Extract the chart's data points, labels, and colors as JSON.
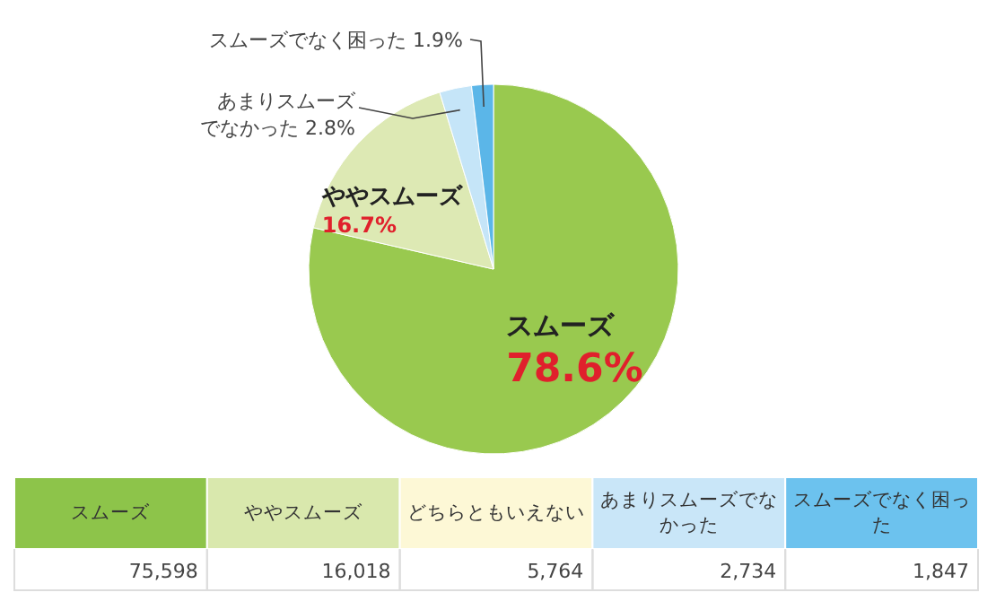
{
  "chart_data": [
    {
      "type": "pie",
      "categories": [
        "スムーズ",
        "ややスムーズ",
        "あまりスムーズでなかった",
        "スムーズでなく困った"
      ],
      "values": [
        78.6,
        16.7,
        2.8,
        1.9
      ],
      "colors": [
        "#99c94f",
        "#dde9b4",
        "#c5e5f8",
        "#5bb6e8"
      ],
      "value_labels": [
        "78.6%",
        "16.7%",
        "2.8%",
        "1.9%"
      ]
    },
    {
      "type": "other",
      "categories": [
        "スムーズ",
        "ややスムーズ",
        "どちらともいえない",
        "あまりスムーズでなかった",
        "スムーズでなく困った"
      ],
      "value_labels": [
        "75,598",
        "16,018",
        "5,764",
        "2,734",
        "1,847"
      ],
      "colors": [
        "#8dc44a",
        "#d9e8ad",
        "#fdf8d6",
        "#c9e6f8",
        "#6cc2ee"
      ]
    }
  ]
}
